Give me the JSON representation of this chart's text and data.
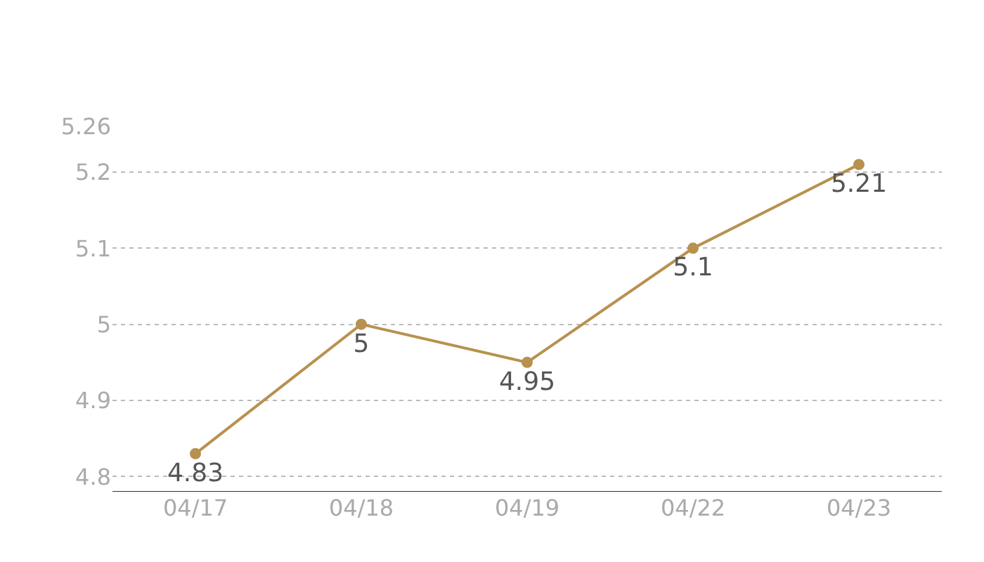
{
  "chart_data": {
    "type": "line",
    "categories": [
      "04/17",
      "04/18",
      "04/19",
      "04/22",
      "04/23"
    ],
    "series": [
      {
        "color": "#b8914f",
        "values": [
          4.83,
          5,
          4.95,
          5.1,
          5.21
        ]
      }
    ],
    "ylim": [
      4.78,
      5.26
    ],
    "yticks": [
      4.8,
      4.9,
      5,
      5.1,
      5.2,
      5.26
    ],
    "grid": "y",
    "marker": "circle",
    "line_style": "solid",
    "data_labels": true
  }
}
